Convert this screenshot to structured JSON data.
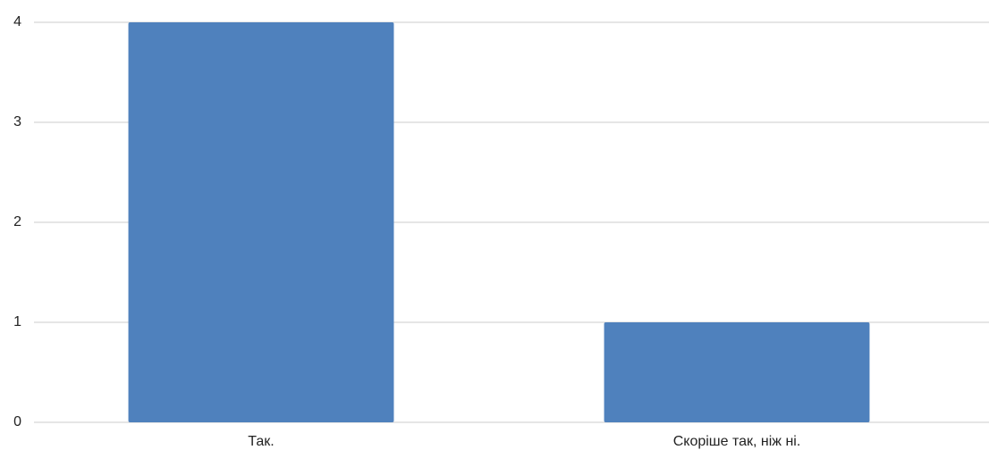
{
  "chart_data": {
    "type": "bar",
    "categories": [
      "Так.",
      "Скоріше так, ніж ні."
    ],
    "values": [
      4,
      1
    ],
    "color": "#4f81bd",
    "ylim": [
      0,
      4
    ],
    "yticks": [
      0,
      1,
      2,
      3,
      4
    ],
    "grid": true
  }
}
